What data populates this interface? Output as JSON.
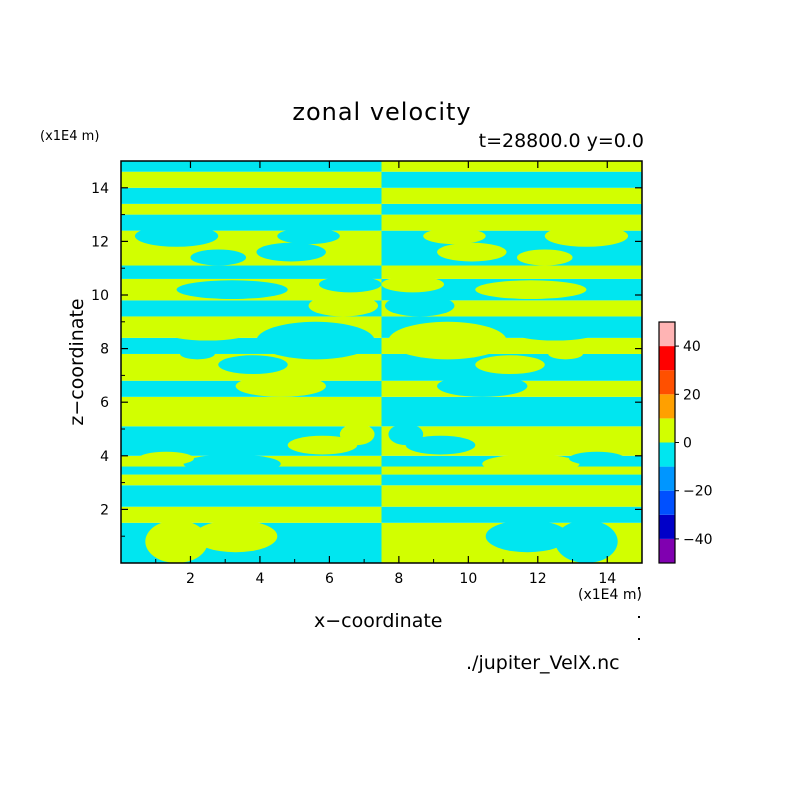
{
  "chart_data": {
    "type": "heatmap",
    "title": "zonal velocity",
    "subtitle": "t=28800.0 y=0.0",
    "xlabel": "x−coordinate",
    "ylabel": "z−coordinate",
    "x_unit": "(x1E4 m)",
    "y_unit": "(x1E4 m)",
    "xlim": [
      0,
      15
    ],
    "ylim": [
      0,
      15
    ],
    "x_ticks": [
      "2",
      "4",
      "6",
      "8",
      "10",
      "12",
      "14"
    ],
    "y_ticks": [
      "2",
      "4",
      "6",
      "8",
      "10",
      "12",
      "14"
    ],
    "colorbar": {
      "range": [
        -50,
        50
      ],
      "ticks": [
        "−40",
        "−20",
        "0",
        "20",
        "40"
      ],
      "levels": [
        {
          "min": -50,
          "max": -40,
          "color": "#8000b0"
        },
        {
          "min": -40,
          "max": -30,
          "color": "#0000c8"
        },
        {
          "min": -30,
          "max": -20,
          "color": "#0050ff"
        },
        {
          "min": -20,
          "max": -10,
          "color": "#0096ff"
        },
        {
          "min": -10,
          "max": 0,
          "color": "#00e6f0"
        },
        {
          "min": 0,
          "max": 10,
          "color": "#d2ff00"
        },
        {
          "min": 10,
          "max": 20,
          "color": "#ffa000"
        },
        {
          "min": 20,
          "max": 30,
          "color": "#ff5000"
        },
        {
          "min": 30,
          "max": 40,
          "color": "#ff0000"
        },
        {
          "min": 40,
          "max": 50,
          "color": "#ffb4b4"
        }
      ]
    },
    "field": {
      "description_note": "",
      "positive_color": "#d2ff00",
      "negative_color": "#00e6f0",
      "left_half_bands": [
        {
          "z0": 0.0,
          "z1": 1.5,
          "sign": "negative"
        },
        {
          "z0": 1.5,
          "z1": 2.1,
          "sign": "positive"
        },
        {
          "z0": 2.1,
          "z1": 2.9,
          "sign": "negative"
        },
        {
          "z0": 2.9,
          "z1": 3.3,
          "sign": "positive"
        },
        {
          "z0": 3.3,
          "z1": 3.6,
          "sign": "negative"
        },
        {
          "z0": 3.6,
          "z1": 4.0,
          "sign": "positive"
        },
        {
          "z0": 4.0,
          "z1": 5.1,
          "sign": "negative"
        },
        {
          "z0": 5.1,
          "z1": 6.2,
          "sign": "positive"
        },
        {
          "z0": 6.2,
          "z1": 6.8,
          "sign": "negative"
        },
        {
          "z0": 6.8,
          "z1": 7.8,
          "sign": "positive"
        },
        {
          "z0": 7.8,
          "z1": 8.4,
          "sign": "negative"
        },
        {
          "z0": 8.4,
          "z1": 9.2,
          "sign": "positive"
        },
        {
          "z0": 9.2,
          "z1": 9.8,
          "sign": "negative"
        },
        {
          "z0": 9.8,
          "z1": 10.6,
          "sign": "positive"
        },
        {
          "z0": 10.6,
          "z1": 11.1,
          "sign": "negative"
        },
        {
          "z0": 11.1,
          "z1": 12.4,
          "sign": "positive"
        },
        {
          "z0": 12.4,
          "z1": 13.0,
          "sign": "negative"
        },
        {
          "z0": 13.0,
          "z1": 13.4,
          "sign": "positive"
        },
        {
          "z0": 13.4,
          "z1": 14.0,
          "sign": "negative"
        },
        {
          "z0": 14.0,
          "z1": 14.6,
          "sign": "positive"
        },
        {
          "z0": 14.6,
          "z1": 15.0,
          "sign": "negative"
        }
      ],
      "mirror_x": 7.5,
      "right_half_inverted": true
    }
  },
  "source_file": "./jupiter_VelX.nc"
}
